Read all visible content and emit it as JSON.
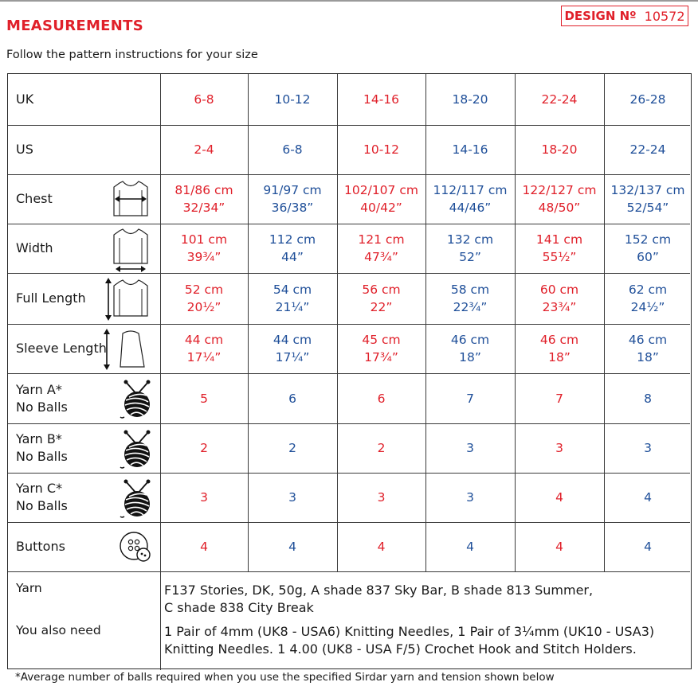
{
  "header": {
    "title": "MEASUREMENTS",
    "design_label": "DESIGN Nº",
    "design_number": "10572",
    "subtitle": "Follow the pattern instructions for your size"
  },
  "colors": {
    "odd_column": "#e0202a",
    "even_column": "#1f4f99"
  },
  "rows": [
    {
      "label": "UK",
      "icon": "",
      "values": [
        [
          "6-8"
        ],
        [
          "10-12"
        ],
        [
          "14-16"
        ],
        [
          "18-20"
        ],
        [
          "22-24"
        ],
        [
          "26-28"
        ]
      ]
    },
    {
      "label": "US",
      "icon": "",
      "values": [
        [
          "2-4"
        ],
        [
          "6-8"
        ],
        [
          "10-12"
        ],
        [
          "14-16"
        ],
        [
          "18-20"
        ],
        [
          "22-24"
        ]
      ]
    },
    {
      "label": "Chest",
      "icon": "chest-measure-icon",
      "values": [
        [
          "81/86 cm",
          "32/34”"
        ],
        [
          "91/97 cm",
          "36/38”"
        ],
        [
          "102/107 cm",
          "40/42”"
        ],
        [
          "112/117 cm",
          "44/46”"
        ],
        [
          "122/127 cm",
          "48/50”"
        ],
        [
          "132/137 cm",
          "52/54”"
        ]
      ]
    },
    {
      "label": "Width",
      "icon": "width-measure-icon",
      "values": [
        [
          "101 cm",
          "39¾”"
        ],
        [
          "112 cm",
          "44”"
        ],
        [
          "121 cm",
          "47¾”"
        ],
        [
          "132 cm",
          "52”"
        ],
        [
          "141 cm",
          "55½”"
        ],
        [
          "152 cm",
          "60”"
        ]
      ]
    },
    {
      "label": "Full Length",
      "icon": "full-length-measure-icon",
      "values": [
        [
          "52 cm",
          "20½”"
        ],
        [
          "54 cm",
          "21¼”"
        ],
        [
          "56 cm",
          "22”"
        ],
        [
          "58 cm",
          "22¾”"
        ],
        [
          "60 cm",
          "23¾”"
        ],
        [
          "62 cm",
          "24½”"
        ]
      ]
    },
    {
      "label": "Sleeve Length",
      "icon": "sleeve-length-measure-icon",
      "values": [
        [
          "44 cm",
          "17¼”"
        ],
        [
          "44 cm",
          "17¼”"
        ],
        [
          "45 cm",
          "17¾”"
        ],
        [
          "46 cm",
          "18”"
        ],
        [
          "46 cm",
          "18”"
        ],
        [
          "46 cm",
          "18”"
        ]
      ]
    },
    {
      "label": "Yarn A*",
      "label2": "No Balls",
      "icon": "yarn-ball-icon",
      "values": [
        [
          "5"
        ],
        [
          "6"
        ],
        [
          "6"
        ],
        [
          "7"
        ],
        [
          "7"
        ],
        [
          "8"
        ]
      ]
    },
    {
      "label": "Yarn B*",
      "label2": "No Balls",
      "icon": "yarn-ball-icon",
      "values": [
        [
          "2"
        ],
        [
          "2"
        ],
        [
          "2"
        ],
        [
          "3"
        ],
        [
          "3"
        ],
        [
          "3"
        ]
      ]
    },
    {
      "label": "Yarn C*",
      "label2": "No Balls",
      "icon": "yarn-ball-icon",
      "values": [
        [
          "3"
        ],
        [
          "3"
        ],
        [
          "3"
        ],
        [
          "3"
        ],
        [
          "4"
        ],
        [
          "4"
        ]
      ]
    },
    {
      "label": "Buttons",
      "icon": "button-icon",
      "values": [
        [
          "4"
        ],
        [
          "4"
        ],
        [
          "4"
        ],
        [
          "4"
        ],
        [
          "4"
        ],
        [
          "4"
        ]
      ]
    }
  ],
  "yarn": {
    "label": "Yarn",
    "line1": "F137 Stories, DK, 50g, A shade 837 Sky Bar, B shade 813 Summer,",
    "line2": "C shade 838 City Break"
  },
  "also_need": {
    "label": "You also need",
    "line1": "1 Pair of 4mm (UK8 - USA6) Knitting Needles, 1 Pair of 3¼mm (UK10 - USA3)",
    "line2": "Knitting Needles. 1 4.00 (UK8 - USA F/5) Crochet Hook and Stitch Holders."
  },
  "footnote": "*Average number of balls required when you use the specified Sirdar yarn and tension shown below"
}
